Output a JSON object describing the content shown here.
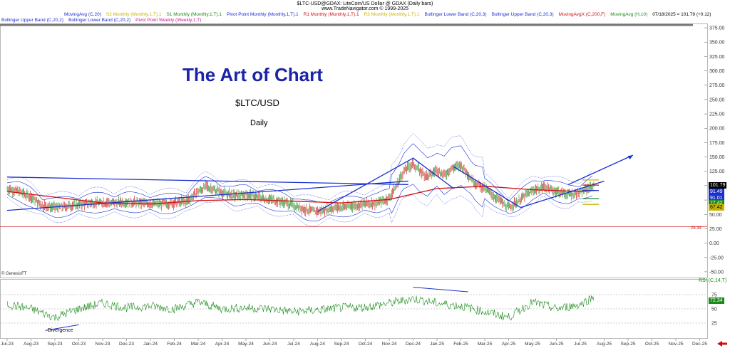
{
  "header": {
    "line1": "$LTC-USD@GDAX:  LiteCoin/US Dollar @ GDAX  (Daily bars)",
    "line2": "www.TradeNavigator.com © 1999-2025"
  },
  "legend_row1": [
    {
      "text": "MovingAvg (C,20)",
      "color": "#1a2fd0"
    },
    {
      "text": "S2 Monthly (Monthly,1,T).1",
      "color": "#c8b400"
    },
    {
      "text": "S1 Monthly (Monthly,1,T).1",
      "color": "#1a8a1a"
    },
    {
      "text": "Pivot Point Monthly (Monthly,1,T).1",
      "color": "#1a2fd0"
    },
    {
      "text": "R1 Monthly (Monthly,1,T).1",
      "color": "#d01010"
    },
    {
      "text": "R2 Monthly (Monthly,1,T).1",
      "color": "#c8b400"
    },
    {
      "text": "Bollinger Lower Band (C,20,3)",
      "color": "#1a2fd0"
    },
    {
      "text": "Bollinger Upper Band (C,20,3)",
      "color": "#1a2fd0"
    },
    {
      "text": "MovingAvgX (C,200,F)",
      "color": "#d01010"
    },
    {
      "text": "MovingAvg (H,10)",
      "color": "#1a8a1a"
    },
    {
      "text": "07/18/2025 = 101.79 (+0.12)",
      "color": "#000000"
    }
  ],
  "legend_row2": [
    {
      "text": "Bollinger Upper Band (C,20,2)",
      "color": "#1a2fd0"
    },
    {
      "text": "Bollinger Lower Band (C,20,2)",
      "color": "#1a2fd0"
    },
    {
      "text": "Pivot Point Weekly (Weekly,1,T)",
      "color": "#c0189a"
    }
  ],
  "annotation": {
    "title": "The Art of Chart",
    "symbol": "$LTC/USD",
    "period": "Daily",
    "divergence": "Divergence",
    "genesis": "© GenesisFT",
    "rsi_label": "RSI (C,14,T)",
    "level_label": "28.34"
  },
  "price_tags": [
    {
      "text": "101.79",
      "bg": "#000000",
      "fg": "#ffffff"
    },
    {
      "text": "91.49",
      "bg": "#1a2fd0",
      "fg": "#ffffff"
    },
    {
      "text": "91.01",
      "bg": "#1a2fd0",
      "fg": "#ffffff"
    },
    {
      "text": "77.42",
      "bg": "#1a8a1a",
      "fg": "#ffffff"
    },
    {
      "text": "67.42",
      "bg": "#c8b400",
      "fg": "#000000"
    }
  ],
  "rsi_tag": {
    "text": "72.34"
  },
  "colors": {
    "price": "#1a8a1a",
    "down": "#d01010",
    "bands": "#1a2fd0",
    "ma200": "#d01010",
    "trend": "#1a2fd0",
    "rsi": "#1a8a1a",
    "ref_line": "#d01010"
  },
  "chart_data": {
    "type": "line",
    "title": "$LTC-USD@GDAX:  LiteCoin/US Dollar @ GDAX  (Daily bars)",
    "xlabel": "",
    "ylabel": "",
    "ylim": [
      -60,
      380
    ],
    "y_ticks": [
      -50,
      -25,
      0,
      25,
      50,
      75,
      100,
      125,
      150,
      175,
      200,
      225,
      250,
      275,
      300,
      325,
      350,
      375
    ],
    "x_ticks": [
      "Jul-23",
      "Aug-23",
      "Sep-23",
      "Oct-23",
      "Nov-23",
      "Dec-23",
      "Jan-24",
      "Feb-24",
      "Mar-24",
      "Apr-24",
      "May-24",
      "Jun-24",
      "Jul-24",
      "Aug-24",
      "Sep-24",
      "Oct-24",
      "Nov-24",
      "Dec-24",
      "Jan-25",
      "Feb-25",
      "Mar-25",
      "Apr-25",
      "May-25",
      "Jun-25",
      "Jul-25",
      "Aug-25",
      "Sep-25",
      "Oct-25",
      "Nov-25",
      "Dec-25"
    ],
    "series": [
      {
        "name": "$LTC-USD@GDAX",
        "x": [
          0,
          0.5,
          1,
          1.5,
          2,
          2.5,
          3,
          3.5,
          4,
          4.5,
          5,
          5.5,
          6,
          6.5,
          7,
          7.5,
          8,
          8.3,
          8.6,
          9,
          9.5,
          10,
          10.5,
          11,
          11.5,
          12,
          12.5,
          13,
          13.5,
          14,
          14.5,
          15,
          15.5,
          16,
          16.3,
          16.6,
          17,
          17.3,
          17.6,
          18,
          18.3,
          18.6,
          19,
          19.3,
          19.6,
          20,
          20.5,
          21,
          21.3,
          21.6,
          22,
          22.5,
          23,
          23.5,
          24,
          24.3,
          24.6
        ],
        "values": [
          95,
          90,
          80,
          65,
          62,
          64,
          67,
          70,
          71,
          70,
          72,
          70,
          69,
          68,
          70,
          72,
          90,
          98,
          95,
          88,
          82,
          85,
          80,
          76,
          72,
          66,
          58,
          55,
          60,
          63,
          65,
          68,
          70,
          78,
          100,
          125,
          138,
          125,
          115,
          128,
          118,
          130,
          135,
          120,
          105,
          95,
          78,
          62,
          70,
          80,
          92,
          98,
          90,
          85,
          88,
          95,
          101.79
        ]
      },
      {
        "name": "MovingAvgX (C,200,F)",
        "x": [
          0,
          2,
          4,
          6,
          8,
          10,
          12,
          14,
          16,
          18,
          20,
          22,
          24,
          24.6
        ],
        "values": [
          90,
          80,
          70,
          68,
          74,
          76,
          73,
          70,
          76,
          95,
          99,
          93,
          90,
          92
        ]
      },
      {
        "name": "RSI (C,14,T)",
        "x": [
          0,
          1,
          2,
          3,
          4,
          5,
          6,
          7,
          8,
          9,
          10,
          11,
          12,
          13,
          14,
          15,
          16,
          17,
          18,
          19,
          20,
          21,
          22,
          23,
          24,
          24.6
        ],
        "values": [
          58,
          50,
          35,
          50,
          60,
          52,
          55,
          50,
          62,
          50,
          52,
          50,
          45,
          48,
          52,
          53,
          60,
          68,
          60,
          55,
          45,
          35,
          62,
          50,
          58,
          72.34
        ]
      }
    ],
    "reference_line": 28.34,
    "last_value": 101.79
  }
}
